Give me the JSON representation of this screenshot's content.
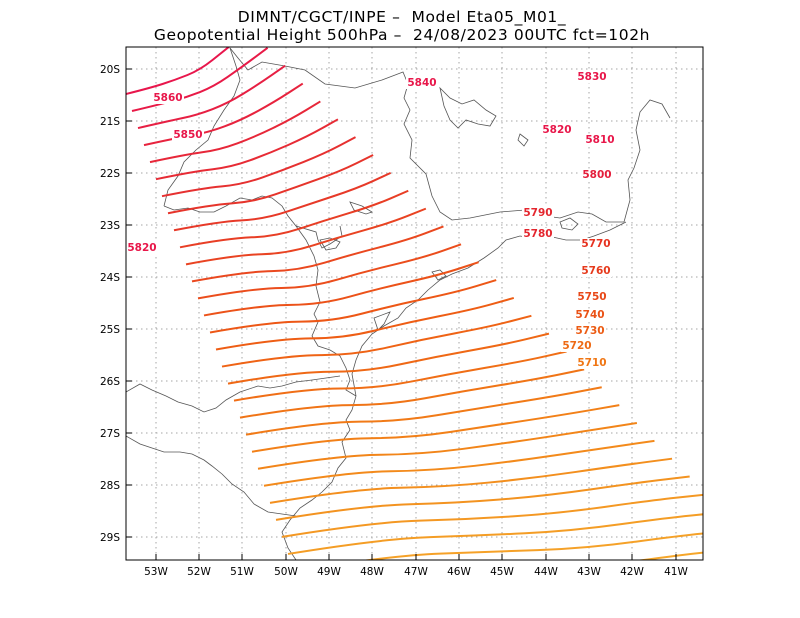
{
  "title_line1": "DIMNT/CGCT/INPE –  Model Eta05_M01_",
  "title_line2": "Geopotential Height 500hPa –  24/08/2023 00UTC fct=102h",
  "lat_ticks": [
    "20S",
    "21S",
    "22S",
    "23S",
    "24S",
    "25S",
    "26S",
    "27S",
    "28S",
    "29S"
  ],
  "lon_ticks": [
    "53W",
    "52W",
    "51W",
    "50W",
    "49W",
    "48W",
    "47W",
    "46W",
    "45W",
    "44W",
    "43W",
    "42W",
    "41W"
  ],
  "contour_labels": [
    {
      "text": "5860",
      "color": "#e8174a"
    },
    {
      "text": "5850",
      "color": "#e8174a"
    },
    {
      "text": "5840",
      "color": "#e8174a"
    },
    {
      "text": "5830",
      "color": "#e8174a"
    },
    {
      "text": "5820",
      "color": "#e8174a"
    },
    {
      "text": "5820",
      "color": "#e8174a"
    },
    {
      "text": "5810",
      "color": "#e8174a"
    },
    {
      "text": "5800",
      "color": "#e41f3c"
    },
    {
      "text": "5790",
      "color": "#e4262e"
    },
    {
      "text": "5780",
      "color": "#e4262e"
    },
    {
      "text": "5770",
      "color": "#e63220"
    },
    {
      "text": "5760",
      "color": "#e63a1c"
    },
    {
      "text": "5750",
      "color": "#e84818"
    },
    {
      "text": "5740",
      "color": "#ea5216"
    },
    {
      "text": "5730",
      "color": "#ec5c14"
    },
    {
      "text": "5720",
      "color": "#ee6a14"
    },
    {
      "text": "5710",
      "color": "#f07614"
    }
  ]
}
